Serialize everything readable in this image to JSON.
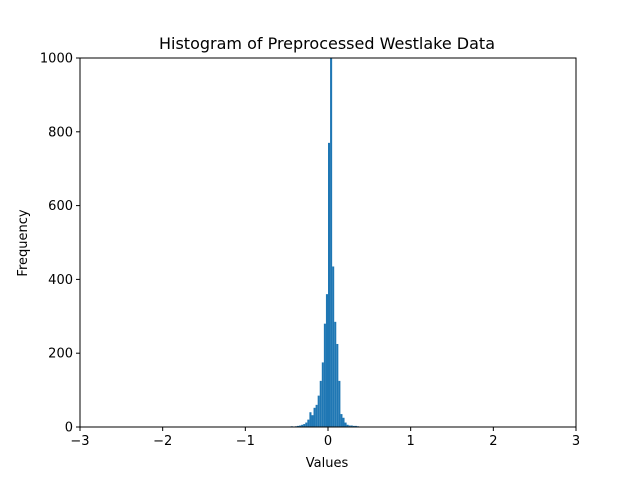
{
  "chart_data": {
    "type": "bar",
    "title": "Histogram of Preprocessed Westlake Data",
    "xlabel": "Values",
    "ylabel": "Frequency",
    "xlim": [
      -3,
      3
    ],
    "ylim": [
      0,
      1000
    ],
    "xticks": [
      -3,
      -2,
      -1,
      0,
      1,
      2,
      3
    ],
    "yticks": [
      0,
      200,
      400,
      600,
      800,
      1000
    ],
    "bar_color": "#1f77b4",
    "bin_width": 0.025,
    "bins": [
      {
        "x": -0.5,
        "y": 1
      },
      {
        "x": -0.45,
        "y": 2
      },
      {
        "x": -0.4,
        "y": 2
      },
      {
        "x": -0.375,
        "y": 3
      },
      {
        "x": -0.35,
        "y": 4
      },
      {
        "x": -0.325,
        "y": 6
      },
      {
        "x": -0.3,
        "y": 8
      },
      {
        "x": -0.275,
        "y": 12
      },
      {
        "x": -0.25,
        "y": 20
      },
      {
        "x": -0.225,
        "y": 40
      },
      {
        "x": -0.2,
        "y": 32
      },
      {
        "x": -0.175,
        "y": 52
      },
      {
        "x": -0.15,
        "y": 60
      },
      {
        "x": -0.125,
        "y": 85
      },
      {
        "x": -0.1,
        "y": 125
      },
      {
        "x": -0.075,
        "y": 175
      },
      {
        "x": -0.05,
        "y": 280
      },
      {
        "x": -0.025,
        "y": 360
      },
      {
        "x": 0.0,
        "y": 770
      },
      {
        "x": 0.025,
        "y": 1000
      },
      {
        "x": 0.05,
        "y": 435
      },
      {
        "x": 0.075,
        "y": 285
      },
      {
        "x": 0.1,
        "y": 225
      },
      {
        "x": 0.125,
        "y": 125
      },
      {
        "x": 0.15,
        "y": 35
      },
      {
        "x": 0.175,
        "y": 25
      },
      {
        "x": 0.2,
        "y": 12
      },
      {
        "x": 0.225,
        "y": 6
      },
      {
        "x": 0.25,
        "y": 4
      },
      {
        "x": 0.275,
        "y": 4
      },
      {
        "x": 0.3,
        "y": 3
      },
      {
        "x": 0.325,
        "y": 3
      },
      {
        "x": 0.35,
        "y": 2
      }
    ]
  }
}
